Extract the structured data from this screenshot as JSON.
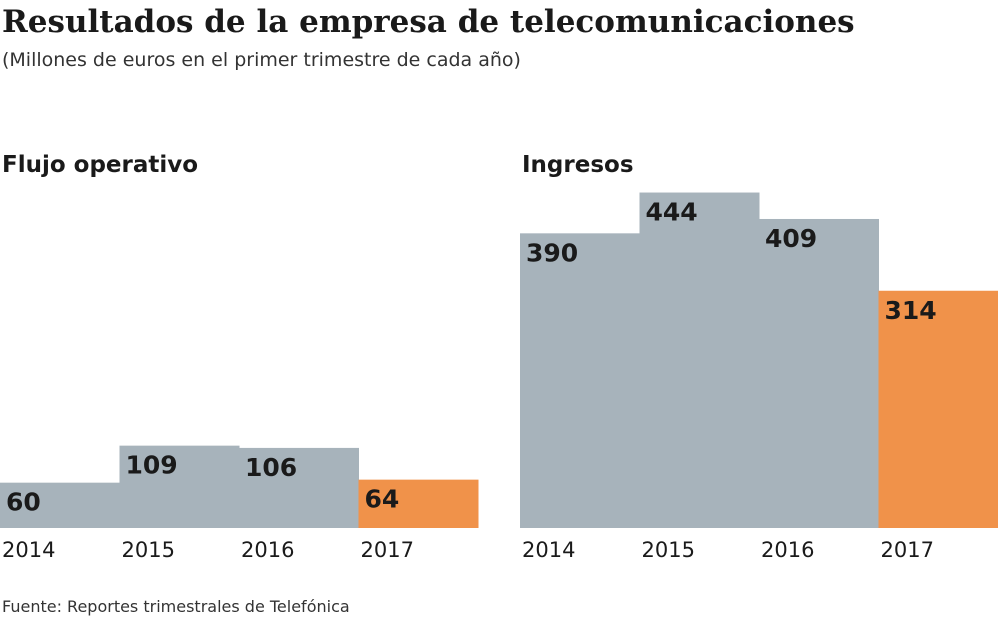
{
  "title": "Resultados de la empresa de telecomunicaciones",
  "subtitle": "(Millones de euros en el primer trimestre de cada año)",
  "source": "Fuente: Reportes trimestrales de Telefónica",
  "chart_data": [
    {
      "type": "bar",
      "title": "Flujo operativo",
      "categories": [
        "2014",
        "2015",
        "2016",
        "2017"
      ],
      "values": [
        60,
        109,
        106,
        64
      ],
      "colors": [
        "#a7b3bb",
        "#a7b3bb",
        "#a7b3bb",
        "#f0924a"
      ],
      "ylim": [
        0,
        450
      ]
    },
    {
      "type": "bar",
      "title": "Ingresos",
      "categories": [
        "2014",
        "2015",
        "2016",
        "2017"
      ],
      "values": [
        390,
        444,
        409,
        314
      ],
      "colors": [
        "#a7b3bb",
        "#a7b3bb",
        "#a7b3bb",
        "#f0924a"
      ],
      "ylim": [
        0,
        450
      ]
    }
  ]
}
